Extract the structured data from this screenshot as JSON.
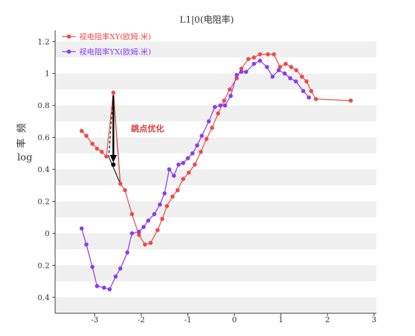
{
  "chart_data": {
    "type": "line",
    "title": "L1|0(电阻率)",
    "ylabel": [
      "log",
      "率",
      "频"
    ],
    "xlim": [
      -3.85,
      3.05
    ],
    "ylim": [
      -0.5,
      1.27
    ],
    "xticks": [
      -3,
      -2,
      -1,
      0,
      1,
      2,
      3
    ],
    "xtick_labels": [
      "-3",
      "-2",
      "-1",
      "0",
      "1",
      "2",
      "3"
    ],
    "yticks": [
      1.2,
      1.0,
      0.8,
      0.6,
      0.4,
      0.2,
      0.0,
      -0.2,
      -0.4
    ],
    "ytick_labels": [
      "1.2",
      "1",
      "0.8",
      "0.6",
      "0.4",
      "0.2",
      "0",
      "0.2",
      "0.4"
    ],
    "grid": "alternating horizontal bands",
    "legend_position": "top-left",
    "series": [
      {
        "name": "视电阻率XY(欧姆.米)",
        "color": "#f04a4a",
        "x": [
          -3.28,
          -3.18,
          -3.05,
          -2.95,
          -2.85,
          -2.75,
          -2.65,
          -2.55,
          -2.45,
          -2.35,
          -2.2,
          -2.05,
          -1.92,
          -1.8,
          -1.65,
          -1.55,
          -1.45,
          -1.33,
          -1.22,
          -1.1,
          -0.98,
          -0.85,
          -0.72,
          -0.6,
          -0.48,
          -0.35,
          -0.22,
          -0.1,
          0.05,
          0.15,
          0.3,
          0.42,
          0.55,
          0.72,
          0.85,
          0.98,
          1.1,
          1.22,
          1.33,
          1.45,
          1.55,
          1.65,
          1.75,
          1.85,
          2.05,
          2.18,
          2.32,
          2.48
        ],
        "y": [
          0.64,
          0.61,
          0.56,
          0.53,
          0.51,
          0.48,
          0.88,
          0.43,
          0.31,
          0.27,
          0.12,
          -0.01,
          -0.07,
          -0.06,
          0.02,
          0.09,
          0.17,
          0.23,
          0.27,
          0.34,
          0.38,
          0.43,
          0.51,
          0.59,
          0.66,
          0.75,
          0.83,
          0.9,
          0.97,
          1.03,
          1.09,
          1.1,
          1.12,
          1.12,
          1.12,
          1.04,
          1.06,
          1.04,
          1.02,
          0.98,
          0.95,
          0.89,
          0.84,
          0.83,
          0.84,
          0.83,
          0.82,
          0.83
        ],
        "points_main": [
          [
            -3.28,
            0.64
          ],
          [
            -3.18,
            0.61
          ],
          [
            -3.05,
            0.56
          ],
          [
            -2.95,
            0.53
          ],
          [
            -2.85,
            0.51
          ],
          [
            -2.75,
            0.48
          ],
          [
            -2.6,
            0.88
          ],
          [
            -2.45,
            0.31
          ],
          [
            -2.35,
            0.27
          ],
          [
            -2.2,
            0.12
          ],
          [
            -2.05,
            -0.01
          ],
          [
            -1.92,
            -0.07
          ],
          [
            -1.8,
            -0.06
          ],
          [
            -1.65,
            0.02
          ],
          [
            -1.55,
            0.09
          ],
          [
            -1.45,
            0.17
          ],
          [
            -1.33,
            0.23
          ],
          [
            -1.22,
            0.27
          ],
          [
            -1.1,
            0.34
          ],
          [
            -0.98,
            0.38
          ],
          [
            -0.85,
            0.43
          ],
          [
            -0.72,
            0.51
          ],
          [
            -0.6,
            0.59
          ],
          [
            -0.48,
            0.66
          ],
          [
            -0.35,
            0.75
          ],
          [
            -0.22,
            0.83
          ],
          [
            -0.1,
            0.9
          ],
          [
            0.05,
            0.97
          ],
          [
            0.15,
            1.03
          ],
          [
            0.3,
            1.09
          ],
          [
            0.42,
            1.1
          ],
          [
            0.55,
            1.12
          ],
          [
            0.72,
            1.12
          ],
          [
            0.85,
            1.12
          ],
          [
            0.98,
            1.04
          ],
          [
            1.1,
            1.06
          ],
          [
            1.22,
            1.04
          ],
          [
            1.33,
            1.02
          ],
          [
            1.45,
            0.98
          ],
          [
            1.55,
            0.95
          ],
          [
            1.65,
            0.89
          ],
          [
            1.75,
            0.84
          ],
          [
            2.5,
            0.83
          ]
        ]
      },
      {
        "name": "视电阻率YX(欧姆.米)",
        "color": "#8a3cf0",
        "points": [
          [
            -3.28,
            0.03
          ],
          [
            -3.18,
            -0.07
          ],
          [
            -3.05,
            -0.21
          ],
          [
            -2.95,
            -0.33
          ],
          [
            -2.8,
            -0.34
          ],
          [
            -2.68,
            -0.35
          ],
          [
            -2.55,
            -0.27
          ],
          [
            -2.45,
            -0.22
          ],
          [
            -2.3,
            -0.12
          ],
          [
            -2.2,
            0.0
          ],
          [
            -2.05,
            0.01
          ],
          [
            -1.95,
            0.04
          ],
          [
            -1.85,
            0.08
          ],
          [
            -1.72,
            0.12
          ],
          [
            -1.6,
            0.18
          ],
          [
            -1.5,
            0.25
          ],
          [
            -1.4,
            0.4
          ],
          [
            -1.3,
            0.36
          ],
          [
            -1.2,
            0.43
          ],
          [
            -1.1,
            0.44
          ],
          [
            -1.0,
            0.47
          ],
          [
            -0.9,
            0.5
          ],
          [
            -0.8,
            0.55
          ],
          [
            -0.7,
            0.61
          ],
          [
            -0.55,
            0.7
          ],
          [
            -0.42,
            0.79
          ],
          [
            -0.3,
            0.8
          ],
          [
            -0.2,
            0.8
          ],
          [
            -0.08,
            0.86
          ],
          [
            0.05,
            0.99
          ],
          [
            0.15,
            1.01
          ],
          [
            0.25,
            1.01
          ],
          [
            0.42,
            1.06
          ],
          [
            0.55,
            1.08
          ],
          [
            0.7,
            1.04
          ],
          [
            0.82,
            0.98
          ],
          [
            0.95,
            1.02
          ],
          [
            1.08,
            1.0
          ],
          [
            1.2,
            0.97
          ],
          [
            1.32,
            0.95
          ],
          [
            1.48,
            0.89
          ],
          [
            1.6,
            0.85
          ]
        ]
      }
    ],
    "annotation": {
      "text": "跳点优化",
      "from": [
        -2.6,
        0.88
      ],
      "to": [
        -2.6,
        0.43
      ],
      "triangle": [
        [
          -2.6,
          0.88
        ],
        [
          -2.7,
          0.48
        ],
        [
          -2.45,
          0.31
        ]
      ]
    }
  }
}
